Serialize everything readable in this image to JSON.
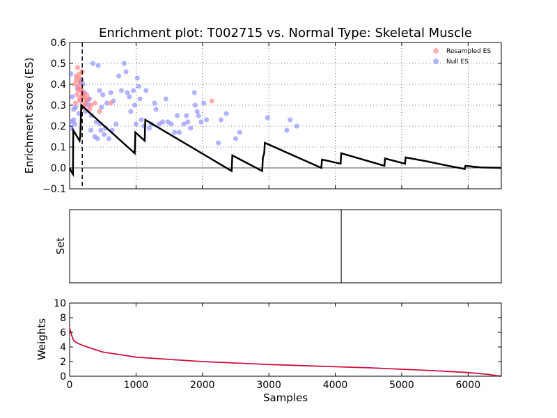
{
  "chart_data": [
    {
      "type": "scatter",
      "panel": "enrichment",
      "title": "Enrichment plot: T002715 vs. Normal Type: Skeletal Muscle",
      "xlabel": "",
      "ylabel": "Enrichment score (ES)",
      "xlim": [
        0,
        6500
      ],
      "ylim": [
        -0.1,
        0.6
      ],
      "yticks": [
        "−0.1",
        "0.0",
        "0.1",
        "0.2",
        "0.3",
        "0.4",
        "0.5",
        "0.6"
      ],
      "grid": true,
      "legend": {
        "placement": "top-right",
        "entries": [
          {
            "label": "Resampled ES",
            "color": "#ff8080"
          },
          {
            "label": "Null ES",
            "color": "#8080ff"
          }
        ]
      },
      "max_es_marker_x": 190,
      "zero_line": 0,
      "es_curve": {
        "name": "",
        "color": "#000000",
        "points": [
          [
            0,
            0.0
          ],
          [
            30,
            -0.02
          ],
          [
            50,
            -0.03
          ],
          [
            55,
            0.18
          ],
          [
            150,
            0.13
          ],
          [
            160,
            0.15
          ],
          [
            175,
            0.3
          ],
          [
            980,
            0.07
          ],
          [
            990,
            0.17
          ],
          [
            1130,
            0.13
          ],
          [
            1140,
            0.23
          ],
          [
            2440,
            -0.015
          ],
          [
            2450,
            0.06
          ],
          [
            2900,
            -0.015
          ],
          [
            2910,
            0.05
          ],
          [
            2930,
            0.07
          ],
          [
            2940,
            0.12
          ],
          [
            3790,
            0.0
          ],
          [
            3800,
            0.04
          ],
          [
            4080,
            0.02
          ],
          [
            4090,
            0.07
          ],
          [
            4740,
            0.01
          ],
          [
            4750,
            0.045
          ],
          [
            5050,
            0.02
          ],
          [
            5060,
            0.05
          ],
          [
            5400,
            0.03
          ],
          [
            5700,
            0.01
          ],
          [
            5950,
            -0.005
          ],
          [
            5960,
            0.01
          ],
          [
            6200,
            0.002
          ],
          [
            6500,
            0.0
          ]
        ]
      },
      "null_es": [
        [
          20,
          0.45
        ],
        [
          25,
          0.22
        ],
        [
          30,
          0.19
        ],
        [
          60,
          0.23
        ],
        [
          40,
          0.34
        ],
        [
          60,
          0.28
        ],
        [
          80,
          0.21
        ],
        [
          90,
          0.29
        ],
        [
          120,
          0.38
        ],
        [
          140,
          0.26
        ],
        [
          160,
          0.41
        ],
        [
          180,
          0.42
        ],
        [
          200,
          0.4
        ],
        [
          220,
          0.36
        ],
        [
          240,
          0.27
        ],
        [
          260,
          0.32
        ],
        [
          280,
          0.3
        ],
        [
          300,
          0.33
        ],
        [
          320,
          0.18
        ],
        [
          330,
          0.25
        ],
        [
          350,
          0.5
        ],
        [
          380,
          0.15
        ],
        [
          400,
          0.22
        ],
        [
          420,
          0.14
        ],
        [
          430,
          0.49
        ],
        [
          450,
          0.37
        ],
        [
          460,
          0.21
        ],
        [
          470,
          0.18
        ],
        [
          480,
          0.29
        ],
        [
          500,
          0.35
        ],
        [
          520,
          0.16
        ],
        [
          540,
          0.19
        ],
        [
          560,
          0.31
        ],
        [
          590,
          0.14
        ],
        [
          620,
          0.36
        ],
        [
          640,
          0.18
        ],
        [
          660,
          0.32
        ],
        [
          700,
          0.21
        ],
        [
          740,
          0.44
        ],
        [
          780,
          0.37
        ],
        [
          820,
          0.5
        ],
        [
          850,
          0.46
        ],
        [
          870,
          0.36
        ],
        [
          900,
          0.34
        ],
        [
          920,
          0.27
        ],
        [
          960,
          0.37
        ],
        [
          980,
          0.3
        ],
        [
          1000,
          0.21
        ],
        [
          1020,
          0.43
        ],
        [
          1040,
          0.39
        ],
        [
          1060,
          0.33
        ],
        [
          1080,
          0.23
        ],
        [
          1120,
          0.2
        ],
        [
          1150,
          0.37
        ],
        [
          1200,
          0.19
        ],
        [
          1230,
          0.21
        ],
        [
          1280,
          0.31
        ],
        [
          1300,
          0.28
        ],
        [
          1350,
          0.21
        ],
        [
          1400,
          0.22
        ],
        [
          1450,
          0.33
        ],
        [
          1480,
          0.22
        ],
        [
          1530,
          0.21
        ],
        [
          1580,
          0.17
        ],
        [
          1620,
          0.25
        ],
        [
          1650,
          0.17
        ],
        [
          1720,
          0.21
        ],
        [
          1760,
          0.25
        ],
        [
          1780,
          0.22
        ],
        [
          1820,
          0.19
        ],
        [
          1880,
          0.36
        ],
        [
          1890,
          0.3
        ],
        [
          1920,
          0.27
        ],
        [
          1940,
          0.25
        ],
        [
          1980,
          0.22
        ],
        [
          2020,
          0.31
        ],
        [
          2060,
          0.23
        ],
        [
          2240,
          0.12
        ],
        [
          2280,
          0.23
        ],
        [
          2360,
          0.26
        ],
        [
          2500,
          0.14
        ],
        [
          2560,
          0.17
        ],
        [
          2980,
          0.24
        ],
        [
          3270,
          0.18
        ],
        [
          3320,
          0.23
        ],
        [
          3420,
          0.2
        ]
      ],
      "resampled_es": [
        [
          80,
          0.4
        ],
        [
          100,
          0.44
        ],
        [
          110,
          0.35
        ],
        [
          120,
          0.48
        ],
        [
          130,
          0.37
        ],
        [
          140,
          0.43
        ],
        [
          150,
          0.33
        ],
        [
          160,
          0.41
        ],
        [
          170,
          0.38
        ],
        [
          180,
          0.34
        ],
        [
          190,
          0.46
        ],
        [
          200,
          0.36
        ],
        [
          210,
          0.3
        ],
        [
          220,
          0.29
        ],
        [
          90,
          0.31
        ],
        [
          130,
          0.39
        ],
        [
          160,
          0.32
        ],
        [
          190,
          0.35
        ],
        [
          240,
          0.31
        ],
        [
          280,
          0.33
        ],
        [
          320,
          0.3
        ],
        [
          380,
          0.31
        ],
        [
          450,
          0.27
        ],
        [
          620,
          0.31
        ],
        [
          2140,
          0.32
        ],
        [
          100,
          0.42
        ],
        [
          150,
          0.45
        ],
        [
          180,
          0.37
        ],
        [
          200,
          0.34
        ],
        [
          230,
          0.33
        ],
        [
          260,
          0.35
        ],
        [
          300,
          0.28
        ]
      ]
    },
    {
      "type": "line",
      "panel": "set",
      "xlabel": "",
      "ylabel": "Set",
      "xlim": [
        0,
        6500
      ],
      "hits": [
        4090
      ]
    },
    {
      "type": "area",
      "panel": "weights",
      "xlabel": "Samples",
      "ylabel": "Weights",
      "xlim": [
        0,
        6500
      ],
      "ylim": [
        0,
        10
      ],
      "xticks": [
        "0",
        "1000",
        "2000",
        "3000",
        "4000",
        "5000",
        "6000"
      ],
      "yticks": [
        "0",
        "2",
        "4",
        "6",
        "8",
        "10"
      ],
      "series": [
        {
          "name": "",
          "color": "#cc1040",
          "values": [
            [
              0,
              6.6
            ],
            [
              30,
              5.6
            ],
            [
              60,
              4.9
            ],
            [
              100,
              4.6
            ],
            [
              200,
              4.2
            ],
            [
              300,
              3.9
            ],
            [
              500,
              3.3
            ],
            [
              800,
              2.9
            ],
            [
              1000,
              2.6
            ],
            [
              1500,
              2.3
            ],
            [
              2000,
              2.0
            ],
            [
              2500,
              1.8
            ],
            [
              3000,
              1.6
            ],
            [
              3500,
              1.45
            ],
            [
              4000,
              1.3
            ],
            [
              4500,
              1.15
            ],
            [
              5000,
              0.95
            ],
            [
              5500,
              0.75
            ],
            [
              6000,
              0.5
            ],
            [
              6300,
              0.25
            ],
            [
              6500,
              0.0
            ]
          ]
        }
      ]
    }
  ]
}
